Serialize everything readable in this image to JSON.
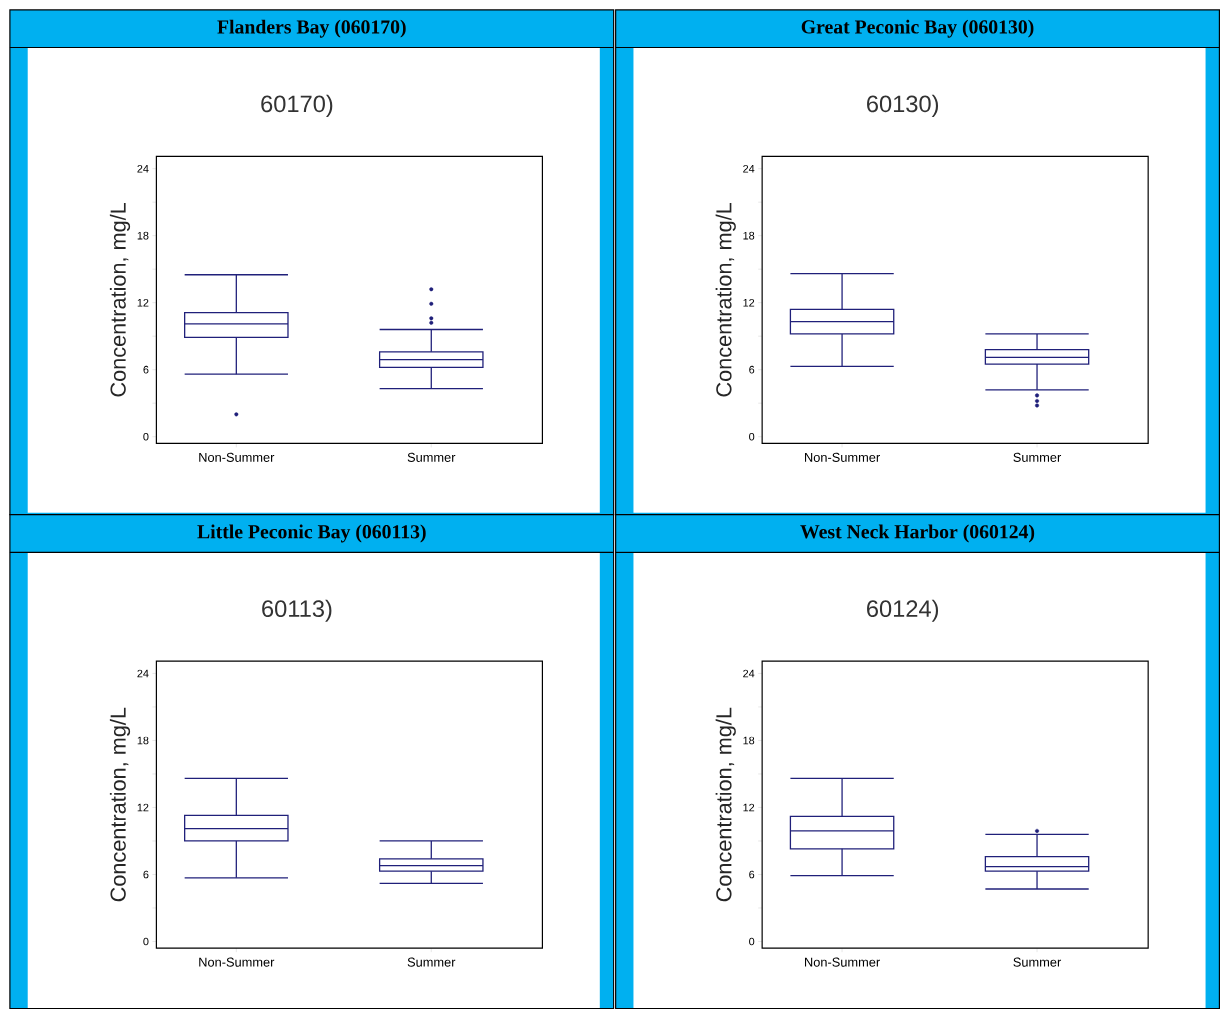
{
  "chart_data": [
    {
      "type": "box",
      "title": "Flanders Bay (060170)",
      "subtitle": "60170)",
      "ylabel": "Concentration, mg/L",
      "categories": [
        "Non-Summer",
        "Summer"
      ],
      "color": "#20207a",
      "grid": false,
      "ylim": [
        -0.6,
        25.1
      ],
      "yticks": [
        0,
        {
          "value": 3,
          "label": null
        },
        6,
        {
          "value": 9,
          "label": null
        },
        12,
        {
          "value": 15,
          "label": null
        },
        18,
        {
          "value": 21,
          "label": null
        },
        24
      ],
      "boxes": [
        {
          "low": 5.6,
          "q1": 8.9,
          "median": 10.1,
          "q3": 11.1,
          "high": 14.5,
          "outliers": [
            2.0
          ]
        },
        {
          "low": 4.3,
          "q1": 6.2,
          "median": 6.9,
          "q3": 7.6,
          "high": 9.6,
          "outliers": [
            13.2,
            11.9,
            10.6,
            10.2
          ]
        }
      ]
    },
    {
      "type": "box",
      "title": "Great Peconic Bay (060130)",
      "subtitle": "60130)",
      "ylabel": "Concentration, mg/L",
      "categories": [
        "Non-Summer",
        "Summer"
      ],
      "color": "#20207a",
      "grid": false,
      "ylim": [
        -0.6,
        25.1
      ],
      "yticks": [
        0,
        {
          "value": 3,
          "label": null
        },
        6,
        {
          "value": 9,
          "label": null
        },
        12,
        {
          "value": 15,
          "label": null
        },
        18,
        {
          "value": 21,
          "label": null
        },
        24
      ],
      "boxes": [
        {
          "low": 6.3,
          "q1": 9.2,
          "median": 10.3,
          "q3": 11.4,
          "high": 14.6
        },
        {
          "low": 4.2,
          "q1": 6.5,
          "median": 7.1,
          "q3": 7.8,
          "high": 9.2,
          "outliers": [
            3.7,
            3.2,
            2.8
          ]
        }
      ]
    },
    {
      "type": "box",
      "title": "Little Peconic Bay (060113)",
      "subtitle": "60113)",
      "ylabel": "Concentration, mg/L",
      "categories": [
        "Non-Summer",
        "Summer"
      ],
      "color": "#20207a",
      "grid": false,
      "ylim": [
        -0.6,
        25.1
      ],
      "yticks": [
        0,
        {
          "value": 3,
          "label": null
        },
        6,
        {
          "value": 9,
          "label": null
        },
        12,
        {
          "value": 15,
          "label": null
        },
        18,
        {
          "value": 21,
          "label": null
        },
        24
      ],
      "boxes": [
        {
          "low": 5.7,
          "q1": 9.0,
          "median": 10.1,
          "q3": 11.3,
          "high": 14.6
        },
        {
          "low": 5.2,
          "q1": 6.3,
          "median": 6.8,
          "q3": 7.4,
          "high": 9.0
        }
      ]
    },
    {
      "type": "box",
      "title": "West Neck Harbor (060124)",
      "subtitle": "60124)",
      "ylabel": "Concentration, mg/L",
      "categories": [
        "Non-Summer",
        "Summer"
      ],
      "color": "#20207a",
      "grid": false,
      "ylim": [
        -0.6,
        25.1
      ],
      "yticks": [
        0,
        {
          "value": 3,
          "label": null
        },
        6,
        {
          "value": 9,
          "label": null
        },
        12,
        {
          "value": 15,
          "label": null
        },
        18,
        {
          "value": 21,
          "label": null
        },
        24
      ],
      "boxes": [
        {
          "low": 5.9,
          "q1": 8.3,
          "median": 9.9,
          "q3": 11.2,
          "high": 14.6
        },
        {
          "low": 4.7,
          "q1": 6.3,
          "median": 6.7,
          "q3": 7.6,
          "high": 9.6,
          "outliers": [
            9.9
          ]
        }
      ]
    }
  ]
}
